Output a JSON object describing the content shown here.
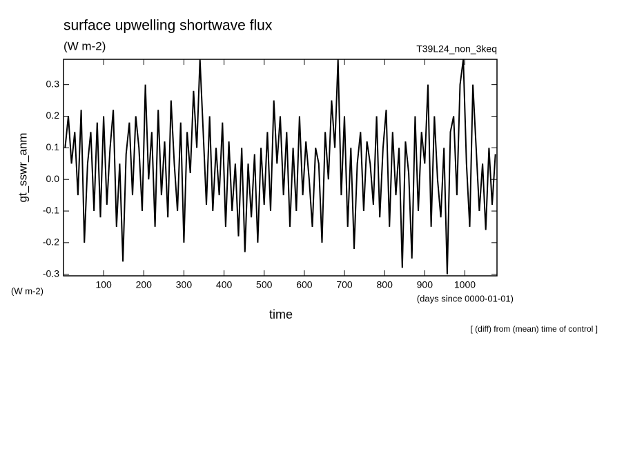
{
  "chart_data": {
    "type": "line",
    "title": "surface upwelling shortwave flux",
    "subtitle": "(W m-2)",
    "run_label": "T39L24_non_3keq",
    "y_label": "gt_sswr_anm",
    "y_unit": "(W m-2)",
    "x_label": "time",
    "x_unit": "(days since 0000-01-01)",
    "note": "[ (diff) from (mean) time of control ]",
    "xlim": [
      0,
      1080
    ],
    "ylim": [
      -0.305,
      0.38
    ],
    "xticks": [
      100,
      200,
      300,
      400,
      500,
      600,
      700,
      800,
      900,
      1000
    ],
    "yticks": [
      -0.3,
      -0.2,
      -0.1,
      {
        "value": 0,
        "label": "0.0"
      },
      0.1,
      0.2,
      0.3
    ],
    "series": [
      {
        "color": "#000000",
        "x": [
          4,
          12,
          20,
          28,
          36,
          44,
          52,
          60,
          68,
          76,
          84,
          92,
          100,
          108,
          116,
          124,
          132,
          140,
          148,
          156,
          164,
          172,
          180,
          188,
          196,
          204,
          212,
          220,
          228,
          236,
          244,
          252,
          260,
          268,
          276,
          284,
          292,
          300,
          308,
          316,
          324,
          332,
          340,
          348,
          356,
          364,
          372,
          380,
          388,
          396,
          404,
          412,
          420,
          428,
          436,
          444,
          452,
          460,
          468,
          476,
          484,
          492,
          500,
          508,
          516,
          524,
          532,
          540,
          548,
          556,
          564,
          572,
          580,
          588,
          596,
          604,
          612,
          620,
          628,
          636,
          644,
          652,
          660,
          668,
          676,
          684,
          692,
          700,
          708,
          716,
          724,
          732,
          740,
          748,
          756,
          764,
          772,
          780,
          788,
          796,
          804,
          812,
          820,
          828,
          836,
          844,
          852,
          860,
          868,
          876,
          884,
          892,
          900,
          908,
          916,
          924,
          932,
          940,
          948,
          956,
          964,
          972,
          980,
          988,
          996,
          1004,
          1012,
          1020,
          1028,
          1036,
          1044,
          1052,
          1060,
          1068,
          1076
        ],
        "values": [
          0.1,
          0.2,
          0.05,
          0.15,
          -0.05,
          0.22,
          -0.2,
          0.05,
          0.15,
          -0.1,
          0.18,
          -0.12,
          0.2,
          -0.08,
          0.1,
          0.22,
          -0.15,
          0.05,
          -0.26,
          0.08,
          0.18,
          -0.05,
          0.2,
          0.1,
          -0.1,
          0.3,
          0.0,
          0.15,
          -0.15,
          0.22,
          -0.05,
          0.12,
          -0.12,
          0.25,
          0.05,
          -0.1,
          0.18,
          -0.2,
          0.15,
          0.02,
          0.28,
          0.1,
          0.38,
          0.15,
          -0.08,
          0.2,
          -0.1,
          0.1,
          -0.05,
          0.18,
          -0.15,
          0.12,
          -0.1,
          0.05,
          -0.18,
          0.1,
          -0.23,
          0.05,
          -0.12,
          0.08,
          -0.2,
          0.1,
          -0.08,
          0.15,
          -0.1,
          0.25,
          0.05,
          0.2,
          -0.05,
          0.15,
          -0.15,
          0.1,
          -0.1,
          0.2,
          -0.05,
          0.12,
          0.0,
          -0.15,
          0.1,
          0.05,
          -0.2,
          0.15,
          0.0,
          0.25,
          0.1,
          0.38,
          -0.05,
          0.2,
          -0.15,
          0.1,
          -0.22,
          0.05,
          0.15,
          -0.1,
          0.12,
          0.05,
          -0.08,
          0.2,
          -0.12,
          0.1,
          0.22,
          -0.15,
          0.15,
          -0.05,
          0.1,
          -0.28,
          0.12,
          0.02,
          -0.25,
          0.2,
          -0.1,
          0.15,
          0.05,
          0.3,
          -0.15,
          0.2,
          0.0,
          -0.12,
          0.1,
          -0.3,
          0.15,
          0.2,
          -0.05,
          0.3,
          0.38,
          0.05,
          -0.15,
          0.3,
          0.1,
          -0.1,
          0.05,
          -0.16,
          0.1,
          -0.08,
          0.08
        ]
      }
    ]
  }
}
